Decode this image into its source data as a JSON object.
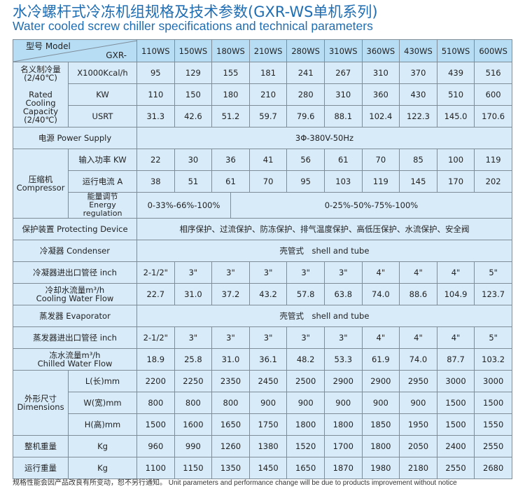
{
  "title_cn": "水冷螺杆式冷冻机组规格及技术参数(GXR-WS单机系列)",
  "title_en": "Water cooled screw chiller specifications and technical parameters",
  "header": {
    "model_label": "型号 Model",
    "prefix": "GXR-",
    "models": [
      "110WS",
      "150WS",
      "180WS",
      "210WS",
      "280WS",
      "310WS",
      "360WS",
      "430WS",
      "510WS",
      "600WS"
    ]
  },
  "cooling": {
    "label_cn": "名义制冷量",
    "label_cn_cond": "(2/40℃)",
    "label_en": "Rated Cooling",
    "label_en2": "Capacity",
    "label_en_cond": "(2/40℃)",
    "rows": [
      {
        "unit": "X1000Kcal/h",
        "values": [
          "95",
          "129",
          "155",
          "181",
          "241",
          "267",
          "310",
          "370",
          "439",
          "516"
        ]
      },
      {
        "unit": "KW",
        "values": [
          "110",
          "150",
          "180",
          "210",
          "280",
          "310",
          "360",
          "430",
          "510",
          "600"
        ]
      },
      {
        "unit": "USRT",
        "values": [
          "31.3",
          "42.6",
          "51.2",
          "59.7",
          "79.6",
          "88.1",
          "102.4",
          "122.3",
          "145.0",
          "170.6"
        ]
      }
    ]
  },
  "power_supply": {
    "label": "电源 Power Supply",
    "value": "3Φ-380V-50Hz"
  },
  "compressor": {
    "label_cn": "压缩机",
    "label_en": "Compressor",
    "rows": [
      {
        "unit": "输入功率 KW",
        "values": [
          "22",
          "30",
          "36",
          "41",
          "56",
          "61",
          "70",
          "85",
          "100",
          "119"
        ]
      },
      {
        "unit": "运行电流 A",
        "values": [
          "38",
          "51",
          "61",
          "70",
          "95",
          "103",
          "119",
          "145",
          "170",
          "202"
        ]
      }
    ],
    "energy_label_cn": "能量调节",
    "energy_label_en": "Energy regulation",
    "energy_values": [
      "0-33%-66%-100%",
      "0-25%-50%-75%-100%"
    ]
  },
  "protecting": {
    "label": "保护装置 Protecting Device",
    "value": "相序保护、过流保护、防冻保护、排气温度保护、高低压保护、水流保护、安全阀"
  },
  "condenser": {
    "label": "冷凝器  Condenser",
    "value": "壳管式　shell and tube",
    "pipe_label": "冷凝器进出口管径 inch",
    "pipe_values": [
      "2-1/2\"",
      "3\"",
      "3\"",
      "3\"",
      "3\"",
      "3\"",
      "4\"",
      "4\"",
      "4\"",
      "5\""
    ],
    "flow_label_cn": "冷却水流量m³/h",
    "flow_label_en": "Cooling Water Flow",
    "flow_values": [
      "22.7",
      "31.0",
      "37.2",
      "43.2",
      "57.8",
      "63.8",
      "74.0",
      "88.6",
      "104.9",
      "123.7"
    ]
  },
  "evaporator": {
    "label": "蒸发器  Evaporator",
    "value": "壳管式　shell and tube",
    "pipe_label": "蒸发器进出口管径 inch",
    "pipe_values": [
      "2-1/2\"",
      "3\"",
      "3\"",
      "3\"",
      "3\"",
      "3\"",
      "4\"",
      "4\"",
      "4\"",
      "5\""
    ],
    "flow_label_cn": "冻水流量m³/h",
    "flow_label_en": "Chilled Water Flow",
    "flow_values": [
      "18.9",
      "25.8",
      "31.0",
      "36.1",
      "48.2",
      "53.3",
      "61.9",
      "74.0",
      "87.7",
      "103.2"
    ]
  },
  "dimensions": {
    "label_cn": "外形尺寸",
    "label_en": "Dimensions",
    "rows": [
      {
        "unit": "L(长)mm",
        "values": [
          "2200",
          "2250",
          "2350",
          "2450",
          "2500",
          "2900",
          "2900",
          "2950",
          "3000",
          "3000"
        ]
      },
      {
        "unit": "W(宽)mm",
        "values": [
          "800",
          "800",
          "800",
          "900",
          "900",
          "900",
          "900",
          "900",
          "1500",
          "1500"
        ]
      },
      {
        "unit": "H(高)mm",
        "values": [
          "1500",
          "1600",
          "1650",
          "1750",
          "1800",
          "1800",
          "1850",
          "1950",
          "1500",
          "1550"
        ]
      }
    ]
  },
  "weights": [
    {
      "label": "整机重量",
      "unit": "Kg",
      "values": [
        "960",
        "990",
        "1260",
        "1380",
        "1520",
        "1700",
        "1800",
        "2050",
        "2400",
        "2550"
      ]
    },
    {
      "label": "运行重量",
      "unit": "Kg",
      "values": [
        "1100",
        "1150",
        "1350",
        "1450",
        "1650",
        "1870",
        "1980",
        "2180",
        "2550",
        "2680"
      ]
    }
  ],
  "footer": "规格性能会因产品改良有所变动，恕不另行通知。 Unit parameters and performance change will be due to products improvement without notice",
  "colors": {
    "title": "#1f6db3",
    "header_bg": "#b7ddf5",
    "cell_bg": "#d8ebf9",
    "border": "#7f8d99"
  }
}
